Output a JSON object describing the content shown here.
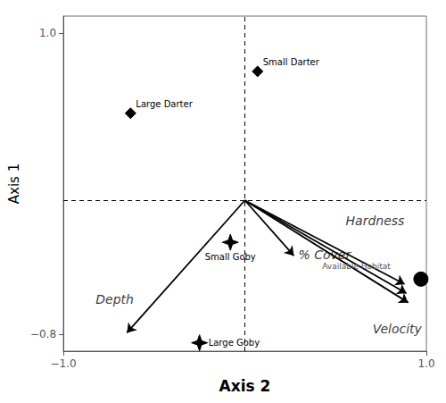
{
  "chart_data": {
    "type": "biplot",
    "xlabel": "Axis 2",
    "ylabel": "Axis 1",
    "xlim": [
      -1.0,
      1.0
    ],
    "ylim": [
      -0.9,
      1.1
    ],
    "xticks": [
      {
        "value": -1.0,
        "label": "−1.0"
      },
      {
        "value": 1.0,
        "label": "1.0"
      }
    ],
    "yticks": [
      {
        "value": -0.8,
        "label": "−0.8"
      },
      {
        "value": 1.0,
        "label": "1.0"
      }
    ],
    "grid": false,
    "color": "#000000",
    "reference_lines": {
      "x": 0.0,
      "y": 0.0
    },
    "points": [
      {
        "label": "Small Darter",
        "x": 0.07,
        "y": 0.77,
        "marker": "diamond"
      },
      {
        "label": "Large Darter",
        "x": -0.63,
        "y": 0.52,
        "marker": "diamond"
      },
      {
        "label": "Small Goby",
        "x": -0.08,
        "y": -0.25,
        "marker": "star"
      },
      {
        "label": "Large Goby",
        "x": -0.25,
        "y": -0.85,
        "marker": "star"
      },
      {
        "label": "Available Habitat",
        "x": 0.97,
        "y": -0.47,
        "marker": "circle"
      }
    ],
    "arrow_origin": [
      0.0,
      0.0
    ],
    "arrows": [
      {
        "label": "Depth",
        "x": -0.65,
        "y": -0.79
      },
      {
        "label": "% Cover",
        "x": 0.27,
        "y": -0.33
      },
      {
        "label": "Hardness",
        "x": 0.88,
        "y": -0.5
      },
      {
        "label": null,
        "x": 0.89,
        "y": -0.555
      },
      {
        "label": "Velocity",
        "x": 0.9,
        "y": -0.61
      }
    ]
  }
}
